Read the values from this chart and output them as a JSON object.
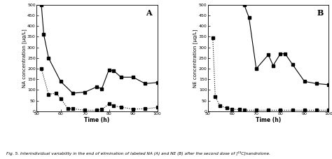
{
  "panel_A": {
    "solid_line": {
      "x": [
        52,
        53,
        55,
        60,
        65,
        70,
        75,
        77,
        80,
        82,
        85,
        90,
        95,
        100
      ],
      "y": [
        500,
        360,
        250,
        140,
        85,
        90,
        115,
        105,
        195,
        190,
        160,
        160,
        130,
        135
      ]
    },
    "dotted_line": {
      "x": [
        52,
        55,
        58,
        60,
        63,
        65,
        70,
        75,
        77,
        80,
        82,
        85,
        90,
        95,
        100
      ],
      "y": [
        200,
        80,
        85,
        60,
        12,
        12,
        5,
        5,
        8,
        35,
        25,
        20,
        10,
        12,
        18
      ]
    },
    "ylabel": "NA concentration [µg/L]",
    "xlabel": "Time (h)",
    "label": "A",
    "xlim": [
      50,
      100
    ],
    "ylim": [
      0,
      500
    ],
    "yticks": [
      0,
      50,
      100,
      150,
      200,
      250,
      300,
      350,
      400,
      450,
      500
    ],
    "xticks": [
      50,
      60,
      70,
      80,
      90,
      100
    ]
  },
  "panel_B": {
    "solid_line": {
      "x": [
        65,
        67,
        70,
        75,
        77,
        80,
        82,
        85,
        90,
        95,
        100
      ],
      "y": [
        500,
        440,
        200,
        265,
        215,
        270,
        270,
        220,
        140,
        130,
        125
      ]
    },
    "dotted_line": {
      "x": [
        52,
        53,
        55,
        58,
        60,
        63,
        65,
        70,
        75,
        80,
        85,
        90,
        95,
        100
      ],
      "y": [
        345,
        70,
        25,
        15,
        10,
        8,
        5,
        5,
        5,
        5,
        5,
        5,
        5,
        5
      ]
    },
    "ylabel": "NE concentration [µg/L]",
    "xlabel": "Time (h)",
    "label": "B",
    "xlim": [
      50,
      100
    ],
    "ylim": [
      0,
      500
    ],
    "yticks": [
      0,
      50,
      100,
      150,
      200,
      250,
      300,
      350,
      400,
      450,
      500
    ],
    "xticks": [
      50,
      60,
      70,
      80,
      90,
      100
    ]
  },
  "caption": "Fig. 5. Interindividual variability in the end of elimination of labeled NA (A) and NE (B) after the second dose of [¹³C]nandrolone.",
  "background_color": "#ffffff",
  "line_color": "#000000",
  "marker": "s",
  "marker_size": 2.5,
  "linewidth": 0.8
}
